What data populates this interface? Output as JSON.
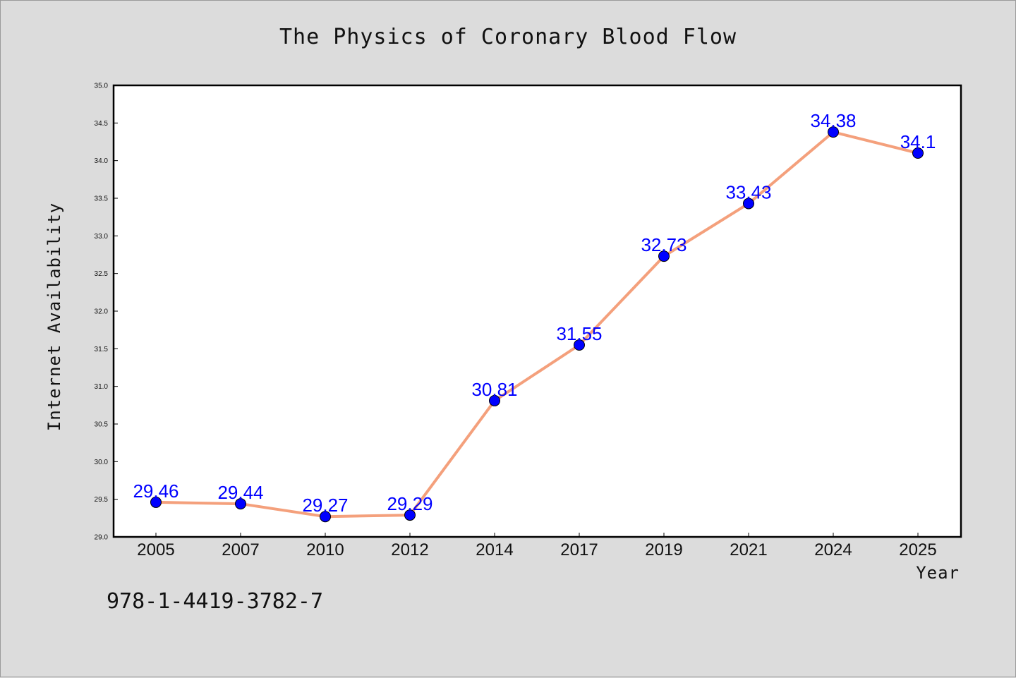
{
  "chart_data": {
    "type": "line",
    "title": "The Physics of Coronary Blood Flow",
    "xlabel": "Year",
    "ylabel": "Internet Availability",
    "categories": [
      "2005",
      "2007",
      "2010",
      "2012",
      "2014",
      "2017",
      "2019",
      "2021",
      "2024",
      "2025"
    ],
    "series": [
      {
        "values": [
          29.46,
          29.44,
          29.27,
          29.29,
          30.81,
          31.55,
          32.73,
          33.43,
          34.38,
          34.1
        ],
        "labels": [
          "29.46",
          "29.44",
          "29.27",
          "29.29",
          "30.81",
          "31.55",
          "32.73",
          "33.43",
          "34.38",
          "34.1"
        ]
      }
    ],
    "ylim": [
      29.0,
      35.0
    ],
    "yticks": [
      "29.0",
      "29.5",
      "30.0",
      "30.5",
      "31.0",
      "31.5",
      "32.0",
      "32.5",
      "33.0",
      "33.5",
      "34.0",
      "34.5",
      "35.0"
    ],
    "grid": false,
    "line_color": "#f4a07c",
    "marker_color": "#0000ff"
  },
  "footer": {
    "isbn": "978-1-4419-3782-7"
  }
}
